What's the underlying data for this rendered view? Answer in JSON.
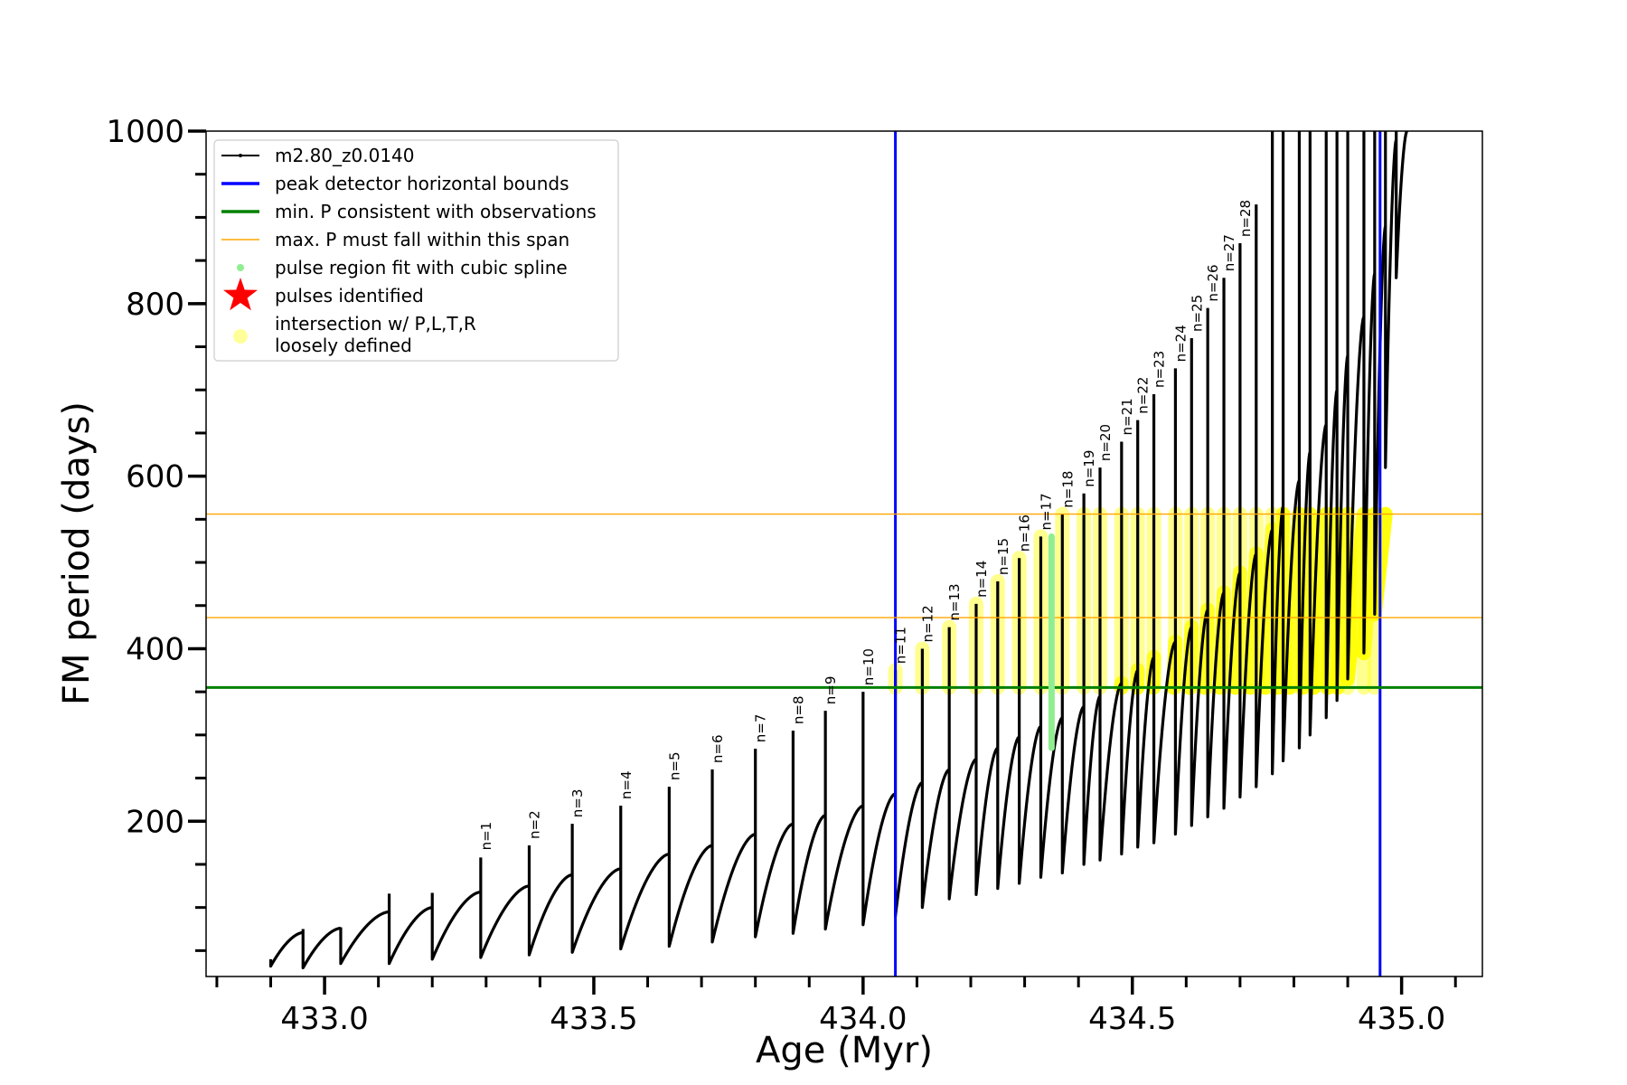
{
  "chart_data": {
    "type": "line",
    "xlabel": "Age (Myr)",
    "ylabel": "FM period (days)",
    "xlim": [
      432.78,
      435.15
    ],
    "ylim": [
      20,
      1000
    ],
    "xticks": [
      433.0,
      433.5,
      434.0,
      434.5,
      435.0
    ],
    "xtick_labels": [
      "433.0",
      "433.5",
      "434.0",
      "434.5",
      "435.0"
    ],
    "x_minor_step": 0.1,
    "yticks": [
      200,
      400,
      600,
      800,
      1000
    ],
    "ytick_labels": [
      "200",
      "400",
      "600",
      "800",
      "1000"
    ],
    "y_minor_step": 50,
    "grid": false,
    "legend_position": "top-left",
    "legend": [
      {
        "label": "m2.80_z0.0140",
        "style": "line-dot",
        "color": "#000000"
      },
      {
        "label": "peak detector horizontal bounds",
        "style": "line",
        "color": "#0000ff"
      },
      {
        "label": "min. P consistent with observations",
        "style": "line",
        "color": "#008000"
      },
      {
        "label": "max. P must fall within this span",
        "style": "thin-line",
        "color": "#ffa500"
      },
      {
        "label": "pulse region fit with cubic spline",
        "style": "dot",
        "color": "#90ee90"
      },
      {
        "label": "pulses identified",
        "style": "star",
        "color": "#ff0000"
      },
      {
        "label": "intersection w/ P,L,T,R\nloosely defined",
        "style": "circle",
        "color": "#ffff99"
      }
    ],
    "vlines": {
      "x": [
        434.06,
        434.96
      ],
      "color": "#0000ff"
    },
    "hline_min": {
      "y": 355,
      "color": "#008000"
    },
    "hlines_max_span": {
      "y": [
        436,
        556
      ],
      "color": "#ffa500"
    },
    "spline_region": {
      "x": 434.35,
      "y_range": [
        285,
        530
      ],
      "color": "#90ee90"
    },
    "series": [
      {
        "name": "m2.80_z0.0140",
        "color": "#000000",
        "pulses": [
          {
            "start": 432.9,
            "end": 432.96,
            "min": 32,
            "peak": 71,
            "spike": 40
          },
          {
            "start": 432.96,
            "end": 433.03,
            "min": 30,
            "peak": 76,
            "spike": 75
          },
          {
            "start": 433.03,
            "end": 433.12,
            "min": 35,
            "peak": 95,
            "spike": 77
          },
          {
            "start": 433.12,
            "end": 433.2,
            "min": 35,
            "peak": 100,
            "spike": 116
          },
          {
            "start": 433.2,
            "end": 433.29,
            "min": 40,
            "peak": 118,
            "spike": 117
          },
          {
            "start": 433.29,
            "end": 433.38,
            "min": 42,
            "peak": 125,
            "spike": 158
          },
          {
            "start": 433.38,
            "end": 433.46,
            "min": 45,
            "peak": 138,
            "spike": 172
          },
          {
            "start": 433.46,
            "end": 433.55,
            "min": 48,
            "peak": 145,
            "spike": 197
          },
          {
            "start": 433.55,
            "end": 433.64,
            "min": 52,
            "peak": 162,
            "spike": 218
          },
          {
            "start": 433.64,
            "end": 433.72,
            "min": 55,
            "peak": 172,
            "spike": 240
          },
          {
            "start": 433.72,
            "end": 433.8,
            "min": 60,
            "peak": 185,
            "spike": 260
          },
          {
            "start": 433.8,
            "end": 433.87,
            "min": 66,
            "peak": 197,
            "spike": 284
          },
          {
            "start": 433.87,
            "end": 433.93,
            "min": 70,
            "peak": 207,
            "spike": 305
          },
          {
            "start": 433.93,
            "end": 434.0,
            "min": 75,
            "peak": 218,
            "spike": 328
          },
          {
            "start": 434.0,
            "end": 434.06,
            "min": 80,
            "peak": 232,
            "spike": 350
          },
          {
            "start": 434.06,
            "end": 434.11,
            "min": 90,
            "peak": 245,
            "spike": 375
          },
          {
            "start": 434.11,
            "end": 434.16,
            "min": 100,
            "peak": 260,
            "spike": 400
          },
          {
            "start": 434.16,
            "end": 434.21,
            "min": 110,
            "peak": 272,
            "spike": 425
          },
          {
            "start": 434.21,
            "end": 434.25,
            "min": 115,
            "peak": 285,
            "spike": 452
          },
          {
            "start": 434.25,
            "end": 434.29,
            "min": 122,
            "peak": 298,
            "spike": 478
          },
          {
            "start": 434.29,
            "end": 434.33,
            "min": 128,
            "peak": 310,
            "spike": 505
          },
          {
            "start": 434.33,
            "end": 434.37,
            "min": 135,
            "peak": 320,
            "spike": 530
          },
          {
            "start": 434.37,
            "end": 434.41,
            "min": 140,
            "peak": 333,
            "spike": 556
          },
          {
            "start": 434.41,
            "end": 434.44,
            "min": 150,
            "peak": 345,
            "spike": 580
          },
          {
            "start": 434.44,
            "end": 434.48,
            "min": 155,
            "peak": 360,
            "spike": 610
          },
          {
            "start": 434.48,
            "end": 434.51,
            "min": 162,
            "peak": 375,
            "spike": 640
          },
          {
            "start": 434.51,
            "end": 434.54,
            "min": 170,
            "peak": 390,
            "spike": 665
          },
          {
            "start": 434.54,
            "end": 434.58,
            "min": 175,
            "peak": 408,
            "spike": 695
          },
          {
            "start": 434.58,
            "end": 434.61,
            "min": 185,
            "peak": 425,
            "spike": 725
          },
          {
            "start": 434.61,
            "end": 434.64,
            "min": 195,
            "peak": 445,
            "spike": 760
          },
          {
            "start": 434.64,
            "end": 434.67,
            "min": 205,
            "peak": 465,
            "spike": 795
          },
          {
            "start": 434.67,
            "end": 434.7,
            "min": 215,
            "peak": 488,
            "spike": 830
          },
          {
            "start": 434.7,
            "end": 434.73,
            "min": 228,
            "peak": 510,
            "spike": 870
          },
          {
            "start": 434.73,
            "end": 434.76,
            "min": 240,
            "peak": 538,
            "spike": 915
          },
          {
            "start": 434.76,
            "end": 434.78,
            "min": 255,
            "peak": 565,
            "spike": 1000
          },
          {
            "start": 434.78,
            "end": 434.81,
            "min": 270,
            "peak": 595,
            "spike": 1000
          },
          {
            "start": 434.81,
            "end": 434.83,
            "min": 285,
            "peak": 628,
            "spike": 1000
          },
          {
            "start": 434.83,
            "end": 434.86,
            "min": 300,
            "peak": 660,
            "spike": 1000
          },
          {
            "start": 434.86,
            "end": 434.88,
            "min": 320,
            "peak": 700,
            "spike": 1000
          },
          {
            "start": 434.88,
            "end": 434.9,
            "min": 340,
            "peak": 740,
            "spike": 1000
          },
          {
            "start": 434.9,
            "end": 434.93,
            "min": 365,
            "peak": 785,
            "spike": 1000
          },
          {
            "start": 434.93,
            "end": 434.95,
            "min": 395,
            "peak": 835,
            "spike": 1000
          },
          {
            "start": 434.95,
            "end": 434.97,
            "min": 440,
            "peak": 890,
            "spike": 1000
          },
          {
            "start": 434.97,
            "end": 434.99,
            "min": 610,
            "peak": 990,
            "spike": 1000
          },
          {
            "start": 434.99,
            "end": 435.01,
            "min": 830,
            "peak": 1000,
            "spike": 1000
          }
        ]
      }
    ],
    "pulse_labels": [
      {
        "text": "n=1",
        "x": 433.29,
        "y": 160
      },
      {
        "text": "n=2",
        "x": 433.38,
        "y": 173
      },
      {
        "text": "n=3",
        "x": 433.46,
        "y": 198
      },
      {
        "text": "n=4",
        "x": 433.55,
        "y": 219
      },
      {
        "text": "n=5",
        "x": 433.64,
        "y": 241
      },
      {
        "text": "n=6",
        "x": 433.72,
        "y": 261
      },
      {
        "text": "n=7",
        "x": 433.8,
        "y": 285
      },
      {
        "text": "n=8",
        "x": 433.87,
        "y": 306
      },
      {
        "text": "n=9",
        "x": 433.93,
        "y": 329
      },
      {
        "text": "n=10",
        "x": 434.0,
        "y": 351
      },
      {
        "text": "n=11",
        "x": 434.06,
        "y": 376
      },
      {
        "text": "n=12",
        "x": 434.11,
        "y": 401
      },
      {
        "text": "n=13",
        "x": 434.16,
        "y": 426
      },
      {
        "text": "n=14",
        "x": 434.21,
        "y": 453
      },
      {
        "text": "n=15",
        "x": 434.25,
        "y": 479
      },
      {
        "text": "n=16",
        "x": 434.29,
        "y": 506
      },
      {
        "text": "n=17",
        "x": 434.33,
        "y": 531
      },
      {
        "text": "n=18",
        "x": 434.37,
        "y": 557
      },
      {
        "text": "n=19",
        "x": 434.41,
        "y": 581
      },
      {
        "text": "n=20",
        "x": 434.44,
        "y": 611
      },
      {
        "text": "n=21",
        "x": 434.48,
        "y": 641
      },
      {
        "text": "n=22",
        "x": 434.51,
        "y": 666
      },
      {
        "text": "n=23",
        "x": 434.54,
        "y": 696
      },
      {
        "text": "n=24",
        "x": 434.58,
        "y": 726
      },
      {
        "text": "n=25",
        "x": 434.61,
        "y": 761
      },
      {
        "text": "n=26",
        "x": 434.64,
        "y": 796
      },
      {
        "text": "n=27",
        "x": 434.67,
        "y": 831
      },
      {
        "text": "n=28",
        "x": 434.7,
        "y": 871
      }
    ]
  }
}
